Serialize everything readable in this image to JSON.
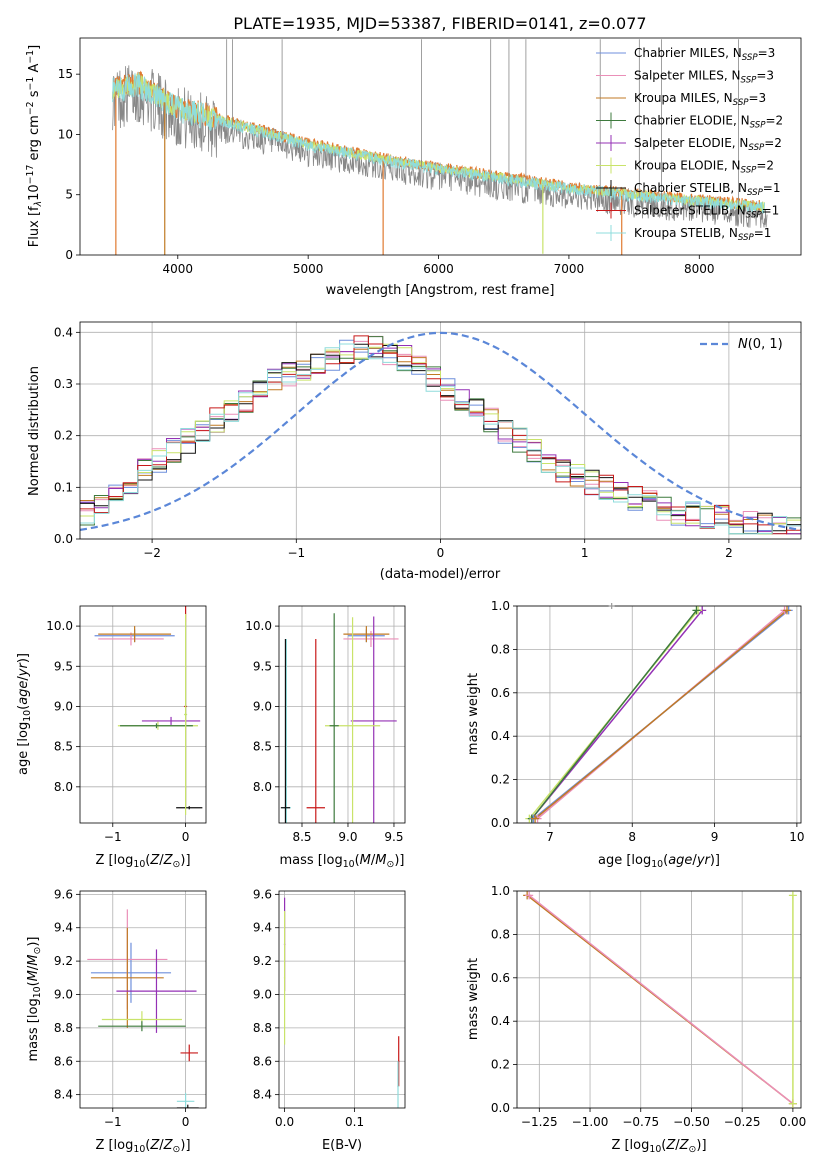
{
  "title": "PLATE=1935, MJD=53387, FIBERID=0141, z=0.077",
  "colors": {
    "Chabrier MILES": "#6f8fdc",
    "Salpeter MILES": "#ea8fb8",
    "Kroupa MILES": "#c07a24",
    "Chabrier ELODIE": "#3d7a3d",
    "Salpeter ELODIE": "#9431b5",
    "Kroupa ELODIE": "#c9e36a",
    "Chabrier STELIB": "#101010",
    "Salpeter STELIB": "#c81a1a",
    "Kroupa STELIB": "#8fdcdc",
    "data": "#888888",
    "fit_primary": "#e07a30",
    "gauss": "#5b87d8"
  },
  "chart_data": [
    {
      "id": "spectrum",
      "type": "line",
      "xlabel": "wavelength [Angstrom, rest frame]",
      "ylabel": "Flux [f",
      "ylabel_parts": [
        "Flux [f",
        "λ",
        "10",
        "−17",
        " erg cm",
        "−2",
        " s",
        "−1",
        " A",
        "−1",
        "]"
      ],
      "xlim": [
        3250,
        8780
      ],
      "ylim": [
        0,
        18
      ],
      "xticks": [
        4000,
        5000,
        6000,
        7000,
        8000
      ],
      "xticklabels": [
        "4000",
        "5000",
        "6000",
        "7000",
        "8000"
      ],
      "yticks": [
        0,
        5,
        10,
        15
      ],
      "yticklabels": [
        "0",
        "5",
        "10",
        "15"
      ],
      "legend_position": "upper right",
      "legend": [
        {
          "name": "Chabrier MILES",
          "sub": "SSP",
          "n": "3",
          "prefix": "Chabrier MILES, N"
        },
        {
          "name": "Salpeter MILES",
          "sub": "SSP",
          "n": "3",
          "prefix": "Salpeter MILES, N"
        },
        {
          "name": "Kroupa MILES",
          "sub": "SSP",
          "n": "3",
          "prefix": "Kroupa MILES, N"
        },
        {
          "name": "Chabrier ELODIE",
          "sub": "SSP",
          "n": "2",
          "prefix": "Chabrier ELODIE, N"
        },
        {
          "name": "Salpeter ELODIE",
          "sub": "SSP",
          "n": "2",
          "prefix": "Salpeter ELODIE, N"
        },
        {
          "name": "Kroupa ELODIE",
          "sub": "SSP",
          "n": "2",
          "prefix": "Kroupa ELODIE, N"
        },
        {
          "name": "Chabrier STELIB",
          "sub": "SSP",
          "n": "1",
          "prefix": "Chabrier STELIB, N"
        },
        {
          "name": "Salpeter STELIB",
          "sub": "SSP",
          "n": "1",
          "prefix": "Salpeter STELIB, N"
        },
        {
          "name": "Kroupa STELIB",
          "sub": "SSP",
          "n": "1",
          "prefix": "Kroupa STELIB, N"
        }
      ],
      "continuum": {
        "x": [
          3500,
          3700,
          4000,
          4500,
          5000,
          5500,
          6000,
          6500,
          7000,
          7500,
          8000,
          8500
        ],
        "y": [
          13.5,
          14.0,
          12.0,
          10.5,
          9.0,
          7.9,
          7.0,
          6.2,
          5.4,
          4.8,
          4.3,
          3.8
        ]
      }
    },
    {
      "id": "residuals",
      "type": "histogram",
      "xlabel": "(data-model)/error",
      "ylabel": "Normed distribution",
      "xlim": [
        -2.5,
        2.5
      ],
      "ylim": [
        0,
        0.42
      ],
      "xticks": [
        -2,
        -1,
        0,
        1,
        2
      ],
      "xticklabels": [
        "−2",
        "−1",
        "0",
        "1",
        "2"
      ],
      "yticks": [
        0,
        0.1,
        0.2,
        0.3,
        0.4
      ],
      "yticklabels": [
        "0.0",
        "0.1",
        "0.2",
        "0.3",
        "0.4"
      ],
      "legend_label": "(0, 1)",
      "legend_position": "upper right",
      "bin_width": 0.1,
      "base_envelope": [
        0.05,
        0.07,
        0.09,
        0.11,
        0.13,
        0.15,
        0.17,
        0.19,
        0.21,
        0.23,
        0.25,
        0.27,
        0.29,
        0.31,
        0.32,
        0.33,
        0.34,
        0.35,
        0.36,
        0.37,
        0.37,
        0.36,
        0.35,
        0.33,
        0.31,
        0.29,
        0.27,
        0.25,
        0.23,
        0.21,
        0.19,
        0.17,
        0.15,
        0.13,
        0.12,
        0.11,
        0.1,
        0.09,
        0.08,
        0.07,
        0.06,
        0.05,
        0.05,
        0.04,
        0.04,
        0.03,
        0.03,
        0.03,
        0.02,
        0.02
      ]
    },
    {
      "id": "age_vs_z",
      "type": "errorbar",
      "xlabel": "Z [log10(Z/Z⊙)]",
      "ylabel": "age  [log10(age/yr)]",
      "xlim": [
        -1.45,
        0.28
      ],
      "ylim": [
        7.55,
        10.25
      ],
      "xticks": [
        -1,
        0
      ],
      "xticklabels": [
        "−1",
        "0"
      ],
      "yticks": [
        8.0,
        8.5,
        9.0,
        9.5,
        10.0
      ],
      "yticklabels": [
        "8.0",
        "8.5",
        "9.0",
        "9.5",
        "10.0"
      ],
      "points": [
        {
          "model": "Chabrier MILES",
          "x": -0.7,
          "y": 9.88,
          "xerr": 0.55,
          "yerr": 0.08
        },
        {
          "model": "Salpeter MILES",
          "x": -0.75,
          "y": 9.84,
          "xerr": 0.45,
          "yerr": 0.08
        },
        {
          "model": "Kroupa MILES",
          "x": -0.7,
          "y": 9.9,
          "xerr": 0.5,
          "yerr": 0.1
        },
        {
          "model": "Salpeter ELODIE",
          "x": -0.2,
          "y": 8.82,
          "xerr": 0.4,
          "yerr": 0.05
        },
        {
          "model": "Kroupa ELODIE",
          "x": -0.38,
          "y": 8.76,
          "xerr": 0.55,
          "yerr": 0.05
        },
        {
          "model": "Chabrier ELODIE",
          "x": -0.4,
          "y": 8.76,
          "xerr": 0.5,
          "yerr": 0.03
        },
        {
          "model": "Salpeter STELIB",
          "x": 0.0,
          "y": 9.0,
          "xerr": 0.02,
          "yerr": 1.25
        },
        {
          "model": "Kroupa STELIB",
          "x": 0.0,
          "y": 8.9,
          "xerr": 0.02,
          "yerr": 1.15
        },
        {
          "model": "Chabrier STELIB",
          "x": 0.05,
          "y": 7.74,
          "xerr": 0.18,
          "yerr": 0.02
        },
        {
          "model": "Kroupa ELODIE",
          "x": 0.0,
          "y": 8.9,
          "xerr": 0.02,
          "yerr": 1.25
        }
      ]
    },
    {
      "id": "age_vs_mass",
      "type": "errorbar",
      "xlabel": "mass [log10(M/M⊙)]",
      "xlim": [
        8.25,
        9.62
      ],
      "ylim": [
        7.55,
        10.25
      ],
      "xticks": [
        8.5,
        9.0,
        9.5
      ],
      "xticklabels": [
        "8.5",
        "9.0",
        "9.5"
      ],
      "yticks": [
        8.0,
        8.5,
        9.0,
        9.5,
        10.0
      ],
      "yticklabels": [
        "8.0",
        "8.5",
        "9.0",
        "9.5",
        "10.0"
      ],
      "points": [
        {
          "model": "Chabrier MILES",
          "x": 9.2,
          "y": 9.88,
          "xerr": 0.2,
          "yerr": 0.08
        },
        {
          "model": "Salpeter MILES",
          "x": 9.25,
          "y": 9.84,
          "xerr": 0.3,
          "yerr": 0.1
        },
        {
          "model": "Kroupa MILES",
          "x": 9.2,
          "y": 9.9,
          "xerr": 0.25,
          "yerr": 0.1
        },
        {
          "model": "Salpeter ELODIE",
          "x": 9.28,
          "y": 8.82,
          "xerr": 0.25,
          "yerr": 1.3
        },
        {
          "model": "Kroupa ELODIE",
          "x": 9.05,
          "y": 8.76,
          "xerr": 0.3,
          "yerr": 1.35
        },
        {
          "model": "Chabrier ELODIE",
          "x": 8.85,
          "y": 8.76,
          "xerr": 0.05,
          "yerr": 1.4
        },
        {
          "model": "Salpeter STELIB",
          "x": 8.65,
          "y": 7.74,
          "xerr": 0.1,
          "yerr": 2.1
        },
        {
          "model": "Kroupa STELIB",
          "x": 8.33,
          "y": 7.74,
          "xerr": 0.05,
          "yerr": 2.1
        },
        {
          "model": "Chabrier STELIB",
          "x": 8.32,
          "y": 7.74,
          "xerr": 0.05,
          "yerr": 2.1
        }
      ]
    },
    {
      "id": "weight_vs_age",
      "type": "line",
      "xlabel": "age  [log10(age/yr)]",
      "ylabel": "mass weight",
      "xlim": [
        6.6,
        10.05
      ],
      "ylim": [
        0,
        1
      ],
      "xticks": [
        7,
        8,
        9,
        10
      ],
      "xticklabels": [
        "7",
        "8",
        "9",
        "10"
      ],
      "yticks": [
        0,
        0.2,
        0.4,
        0.6,
        0.8,
        1.0
      ],
      "yticklabels": [
        "0.0",
        "0.2",
        "0.4",
        "0.6",
        "0.8",
        "1.0"
      ],
      "series": [
        {
          "model": "Salpeter ELODIE",
          "x": [
            6.78,
            8.85
          ],
          "y": [
            0.02,
            0.98
          ]
        },
        {
          "model": "Kroupa ELODIE",
          "x": [
            6.75,
            8.8
          ],
          "y": [
            0.02,
            0.98
          ]
        },
        {
          "model": "Chabrier ELODIE",
          "x": [
            6.78,
            8.78
          ],
          "y": [
            0.02,
            0.98
          ]
        },
        {
          "model": "Salpeter MILES",
          "x": [
            6.85,
            9.85
          ],
          "y": [
            0.02,
            0.98
          ]
        },
        {
          "model": "Chabrier MILES",
          "x": [
            6.8,
            9.9
          ],
          "y": [
            0.02,
            0.98
          ]
        },
        {
          "model": "Kroupa MILES",
          "x": [
            6.82,
            9.88
          ],
          "y": [
            0.02,
            0.98
          ]
        }
      ],
      "markers": [
        {
          "x": 7.75,
          "y": 1.0
        }
      ]
    },
    {
      "id": "mass_vs_z",
      "type": "errorbar",
      "xlabel": "Z [log10(Z/Z⊙)]",
      "ylabel": "mass [log10(M/M⊙)]",
      "xlim": [
        -1.45,
        0.28
      ],
      "ylim": [
        8.32,
        9.62
      ],
      "xticks": [
        -1,
        0
      ],
      "xticklabels": [
        "−1",
        "0"
      ],
      "yticks": [
        8.4,
        8.6,
        8.8,
        9.0,
        9.2,
        9.4,
        9.6
      ],
      "yticklabels": [
        "8.4",
        "8.6",
        "8.8",
        "9.0",
        "9.2",
        "9.4",
        "9.6"
      ],
      "points": [
        {
          "model": "Chabrier MILES",
          "x": -0.75,
          "y": 9.13,
          "xerr": 0.55,
          "yerr": 0.18
        },
        {
          "model": "Salpeter MILES",
          "x": -0.8,
          "y": 9.21,
          "xerr": 0.55,
          "yerr": 0.3
        },
        {
          "model": "Kroupa MILES",
          "x": -0.8,
          "y": 9.1,
          "xerr": 0.5,
          "yerr": 0.3
        },
        {
          "model": "Salpeter ELODIE",
          "x": -0.4,
          "y": 9.02,
          "xerr": 0.55,
          "yerr": 0.25
        },
        {
          "model": "Kroupa ELODIE",
          "x": -0.6,
          "y": 8.85,
          "xerr": 0.55,
          "yerr": 0.05
        },
        {
          "model": "Chabrier ELODIE",
          "x": -0.6,
          "y": 8.81,
          "xerr": 0.6,
          "yerr": 0.03
        },
        {
          "model": "Salpeter STELIB",
          "x": 0.05,
          "y": 8.65,
          "xerr": 0.12,
          "yerr": 0.05
        },
        {
          "model": "Kroupa STELIB",
          "x": 0.0,
          "y": 8.36,
          "xerr": 0.12,
          "yerr": 0.05
        },
        {
          "model": "Chabrier STELIB",
          "x": 0.03,
          "y": 8.32,
          "xerr": 0.15,
          "yerr": 0.02
        }
      ]
    },
    {
      "id": "mass_vs_ebv",
      "type": "errorbar",
      "xlabel": "E(B-V)",
      "xlim": [
        -0.008,
        0.172
      ],
      "ylim": [
        8.32,
        9.62
      ],
      "xticks": [
        0.0,
        0.1
      ],
      "xticklabels": [
        "0.0",
        "0.1"
      ],
      "yticks": [
        8.4,
        8.6,
        8.8,
        9.0,
        9.2,
        9.4,
        9.6
      ],
      "yticklabels": [
        "8.4",
        "8.6",
        "8.8",
        "9.0",
        "9.2",
        "9.4",
        "9.6"
      ],
      "points": [
        {
          "model": "Salpeter ELODIE",
          "x": 0.0,
          "y": 9.3,
          "xerr": 0.001,
          "yerr": 0.28
        },
        {
          "model": "Kroupa ELODIE",
          "x": 0.0,
          "y": 9.1,
          "xerr": 0.001,
          "yerr": 0.4
        },
        {
          "model": "Salpeter STELIB",
          "x": 0.163,
          "y": 8.6,
          "xerr": 0.001,
          "yerr": 0.15
        },
        {
          "model": "Kroupa STELIB",
          "x": 0.162,
          "y": 8.45,
          "xerr": 0.001,
          "yerr": 0.15
        }
      ]
    },
    {
      "id": "weight_vs_z",
      "type": "line",
      "xlabel": "Z [log10(Z/Z⊙)]",
      "ylabel": "mass weight",
      "xlim": [
        -1.36,
        0.04
      ],
      "ylim": [
        0,
        1
      ],
      "xticks": [
        -1.25,
        -1.0,
        -0.75,
        -0.5,
        -0.25,
        0.0
      ],
      "xticklabels": [
        "−1.25",
        "−1.00",
        "−0.75",
        "−0.50",
        "−0.25",
        "0.00"
      ],
      "yticks": [
        0,
        0.2,
        0.4,
        0.6,
        0.8,
        1.0
      ],
      "yticklabels": [
        "0.0",
        "0.2",
        "0.4",
        "0.6",
        "0.8",
        "1.0"
      ],
      "series": [
        {
          "model": "Kroupa MILES",
          "x": [
            -1.31,
            0.0
          ],
          "y": [
            0.98,
            0.02
          ]
        },
        {
          "model": "Salpeter MILES",
          "x": [
            -1.3,
            0.0
          ],
          "y": [
            0.98,
            0.02
          ]
        },
        {
          "model": "Kroupa ELODIE",
          "x": [
            0.0,
            0.0
          ],
          "y": [
            0.02,
            0.98
          ]
        }
      ]
    }
  ]
}
